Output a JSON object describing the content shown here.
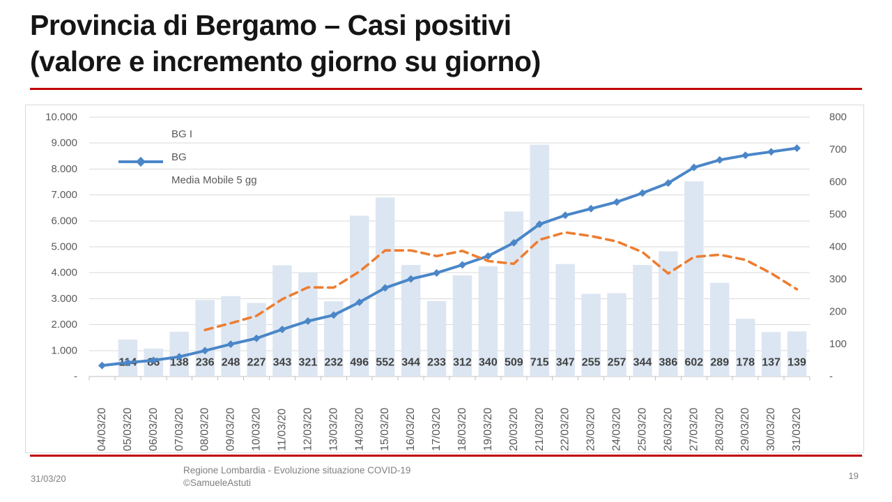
{
  "slide": {
    "title_line1": "Provincia di Bergamo – Casi positivi",
    "title_line2": "(valore e incremento giorno su giorno)",
    "accent_color": "#C00000",
    "footer": {
      "date": "31/03/20",
      "center_line1": "Regione Lombardia - Evoluzione situazione COVID-19",
      "center_line2": "©SamueleAstuti",
      "page_number": "19"
    }
  },
  "chart_data": {
    "type": "combo",
    "title": "",
    "xlabel": "",
    "ylabel_left": "",
    "ylabel_right": "",
    "grid": true,
    "legend_position": "top-left",
    "categories": [
      "04/03/20",
      "05/03/20",
      "06/03/20",
      "07/03/20",
      "08/03/20",
      "09/03/20",
      "10/03/20",
      "11/03/20",
      "12/03/20",
      "13/03/20",
      "14/03/20",
      "15/03/20",
      "16/03/20",
      "17/03/20",
      "18/03/20",
      "19/03/20",
      "20/03/20",
      "21/03/20",
      "22/03/20",
      "23/03/20",
      "24/03/20",
      "25/03/20",
      "26/03/20",
      "27/03/20",
      "28/03/20",
      "29/03/20",
      "30/03/20",
      "31/03/20"
    ],
    "left_axis": {
      "min": 0,
      "max": 10000,
      "step": 1000,
      "tick_labels": [
        "10.000",
        "9.000",
        "8.000",
        "7.000",
        "6.000",
        "5.000",
        "4.000",
        "3.000",
        "2.000",
        "1.000",
        "-"
      ]
    },
    "right_axis": {
      "min": 0,
      "max": 800,
      "step": 100,
      "tick_labels": [
        "800",
        "700",
        "600",
        "500",
        "400",
        "300",
        "200",
        "100",
        "-"
      ]
    },
    "series": [
      {
        "name": "BG I",
        "type": "bar",
        "axis": "right",
        "color": "#DCE6F2",
        "values": [
          null,
          114,
          86,
          138,
          236,
          248,
          227,
          343,
          321,
          232,
          496,
          552,
          344,
          233,
          312,
          340,
          509,
          715,
          347,
          255,
          257,
          344,
          386,
          602,
          289,
          178,
          137,
          139
        ]
      },
      {
        "name": "BG",
        "type": "line",
        "axis": "left",
        "color": "#4A86C8",
        "marker": "diamond",
        "values": [
          423,
          537,
          623,
          761,
          997,
          1245,
          1472,
          1815,
          2136,
          2368,
          2864,
          3416,
          3760,
          3993,
          4305,
          4645,
          5154,
          5869,
          6216,
          6471,
          6728,
          7072,
          7458,
          8060,
          8349,
          8527,
          8664,
          8803
        ]
      },
      {
        "name": "Media Mobile 5 gg",
        "type": "line",
        "axis": "right",
        "style": "dashed",
        "color": "#ED7D31",
        "values": [
          null,
          null,
          null,
          null,
          143.5,
          164.4,
          187,
          238.4,
          275,
          274.2,
          323.8,
          388.8,
          389,
          371.4,
          387.4,
          356.2,
          347.6,
          421.8,
          444.6,
          433.2,
          416.6,
          383.6,
          317.8,
          368.8,
          375.6,
          359.8,
          318.4,
          269
        ]
      }
    ],
    "data_labels": [
      "114",
      "86",
      "138",
      "236",
      "248",
      "227",
      "343",
      "321",
      "232",
      "496",
      "552",
      "344",
      "233",
      "312",
      "340",
      "509",
      "715",
      "347",
      "255",
      "257",
      "344",
      "386",
      "602",
      "289",
      "178",
      "137",
      "139"
    ]
  }
}
